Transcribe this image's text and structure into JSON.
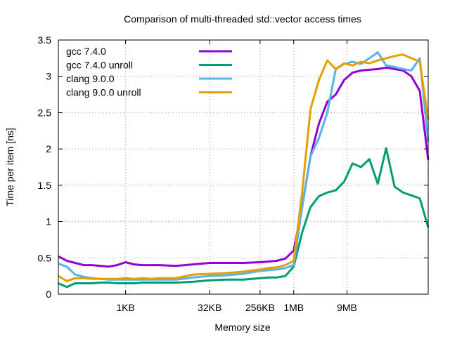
{
  "chart_data": {
    "type": "line",
    "title": "Comparison of multi-threaded std::vector access times",
    "xlabel": "Memory size",
    "ylabel": "Time per item [ns]",
    "xscale": "log2",
    "xlim_log2": [
      6,
      28
    ],
    "ylim": [
      0,
      3.5
    ],
    "grid": true,
    "legend_position": "top-left",
    "x_ticks": [
      {
        "label": "1KB",
        "log2": 10
      },
      {
        "label": "32KB",
        "log2": 15
      },
      {
        "label": "256KB",
        "log2": 18
      },
      {
        "label": "1MB",
        "log2": 20
      },
      {
        "label": "9MB",
        "log2": 23.17
      }
    ],
    "y_ticks": [
      "0",
      "0.5",
      "1",
      "1.5",
      "2",
      "2.5",
      "3",
      "3.5"
    ],
    "series": [
      {
        "name": "gcc 7.4.0",
        "color": "#9400d3",
        "x_log2": [
          6,
          6.5,
          7,
          7.5,
          8,
          8.5,
          9,
          9.5,
          10,
          10.5,
          11,
          11.5,
          12,
          13,
          14,
          15,
          16,
          17,
          18,
          18.5,
          19,
          19.5,
          20,
          20.5,
          21,
          21.5,
          22,
          22.5,
          23,
          23.5,
          24,
          24.5,
          25,
          25.5,
          26,
          26.5,
          27,
          27.5,
          28
        ],
        "values": [
          0.52,
          0.46,
          0.43,
          0.4,
          0.4,
          0.39,
          0.38,
          0.4,
          0.44,
          0.41,
          0.4,
          0.4,
          0.4,
          0.39,
          0.41,
          0.43,
          0.43,
          0.43,
          0.44,
          0.45,
          0.46,
          0.49,
          0.6,
          1.2,
          1.9,
          2.35,
          2.65,
          2.75,
          2.95,
          3.05,
          3.08,
          3.09,
          3.1,
          3.12,
          3.1,
          3.08,
          3.0,
          2.8,
          1.85
        ]
      },
      {
        "name": "gcc 7.4.0 unroll",
        "color": "#009e73",
        "x_log2": [
          6,
          6.5,
          7,
          7.5,
          8,
          8.5,
          9,
          9.5,
          10,
          10.5,
          11,
          11.5,
          12,
          13,
          14,
          15,
          16,
          17,
          18,
          18.5,
          19,
          19.5,
          20,
          20.5,
          21,
          21.5,
          22,
          22.5,
          23,
          23.5,
          24,
          24.5,
          25,
          25.5,
          26,
          26.5,
          27,
          27.5,
          28
        ],
        "values": [
          0.15,
          0.1,
          0.15,
          0.15,
          0.15,
          0.16,
          0.16,
          0.15,
          0.15,
          0.15,
          0.16,
          0.16,
          0.16,
          0.16,
          0.17,
          0.19,
          0.2,
          0.2,
          0.22,
          0.23,
          0.23,
          0.25,
          0.38,
          0.85,
          1.2,
          1.35,
          1.4,
          1.43,
          1.55,
          1.8,
          1.75,
          1.86,
          1.52,
          2.01,
          1.48,
          1.4,
          1.36,
          1.32,
          0.92
        ]
      },
      {
        "name": "clang 9.0.0",
        "color": "#56b4e9",
        "x_log2": [
          6,
          6.5,
          7,
          7.5,
          8,
          8.5,
          9,
          9.5,
          10,
          10.5,
          11,
          11.5,
          12,
          13,
          14,
          15,
          16,
          17,
          18,
          18.5,
          19,
          19.5,
          20,
          20.5,
          21,
          21.5,
          22,
          22.5,
          23,
          23.5,
          24,
          24.5,
          25,
          25.5,
          26,
          26.5,
          27,
          27.5,
          28
        ],
        "values": [
          0.42,
          0.38,
          0.27,
          0.24,
          0.22,
          0.21,
          0.2,
          0.2,
          0.2,
          0.2,
          0.2,
          0.2,
          0.2,
          0.2,
          0.23,
          0.25,
          0.26,
          0.28,
          0.32,
          0.33,
          0.34,
          0.36,
          0.4,
          1.2,
          1.9,
          2.15,
          2.5,
          3.1,
          3.17,
          3.2,
          3.17,
          3.25,
          3.33,
          3.15,
          3.13,
          3.1,
          3.08,
          3.25,
          2.1
        ]
      },
      {
        "name": "clang 9.0.0 unroll",
        "color": "#e69f00",
        "x_log2": [
          6,
          6.5,
          7,
          7.5,
          8,
          8.5,
          9,
          9.5,
          10,
          10.5,
          11,
          11.5,
          12,
          13,
          14,
          15,
          16,
          17,
          18,
          18.5,
          19,
          19.5,
          20,
          20.5,
          21,
          21.5,
          22,
          22.5,
          23,
          23.5,
          24,
          24.5,
          25,
          25.5,
          26,
          26.5,
          27,
          27.5,
          28
        ],
        "values": [
          0.25,
          0.18,
          0.22,
          0.22,
          0.21,
          0.21,
          0.21,
          0.21,
          0.22,
          0.21,
          0.22,
          0.21,
          0.22,
          0.22,
          0.27,
          0.28,
          0.29,
          0.31,
          0.34,
          0.36,
          0.37,
          0.4,
          0.46,
          1.4,
          2.55,
          2.95,
          3.22,
          3.1,
          3.18,
          3.15,
          3.2,
          3.18,
          3.22,
          3.25,
          3.28,
          3.3,
          3.25,
          3.2,
          2.4
        ]
      }
    ]
  }
}
